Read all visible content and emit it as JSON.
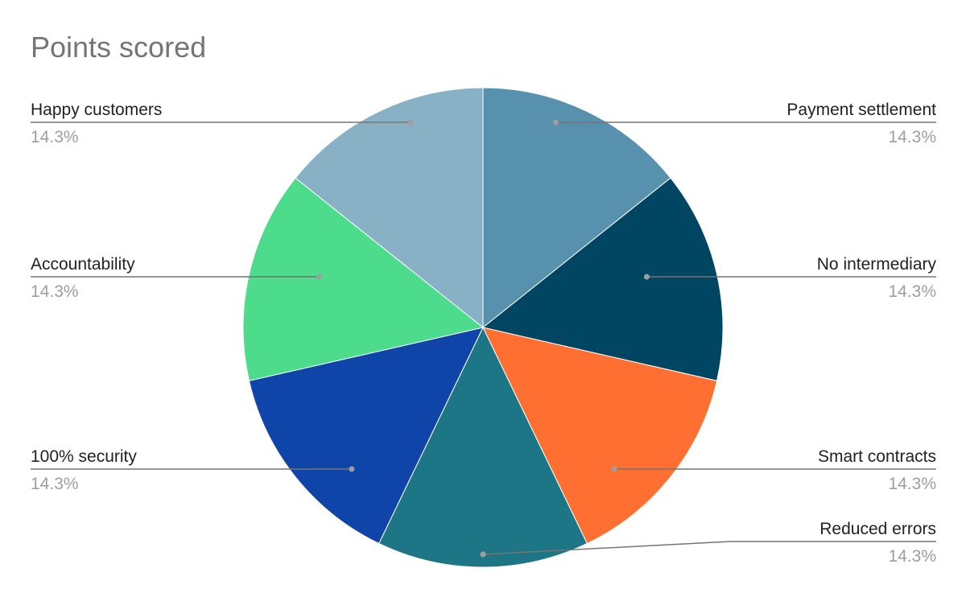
{
  "chart_data": {
    "type": "pie",
    "title": "Points scored",
    "slices": [
      {
        "label": "Payment settlement",
        "value": 14.3,
        "display": "14.3%",
        "color": "#5891ad"
      },
      {
        "label": "No intermediary",
        "value": 14.3,
        "display": "14.3%",
        "color": "#004561"
      },
      {
        "label": "Smart contracts",
        "value": 14.3,
        "display": "14.3%",
        "color": "#ff6f31"
      },
      {
        "label": "Reduced errors",
        "value": 14.3,
        "display": "14.3%",
        "color": "#1c7685"
      },
      {
        "label": "100% security",
        "value": 14.3,
        "display": "14.3%",
        "color": "#0f45a8"
      },
      {
        "label": "Accountability",
        "value": 14.3,
        "display": "14.3%",
        "color": "#4cdc8b"
      },
      {
        "label": "Happy customers",
        "value": 14.3,
        "display": "14.3%",
        "color": "#89b1c6"
      }
    ]
  }
}
